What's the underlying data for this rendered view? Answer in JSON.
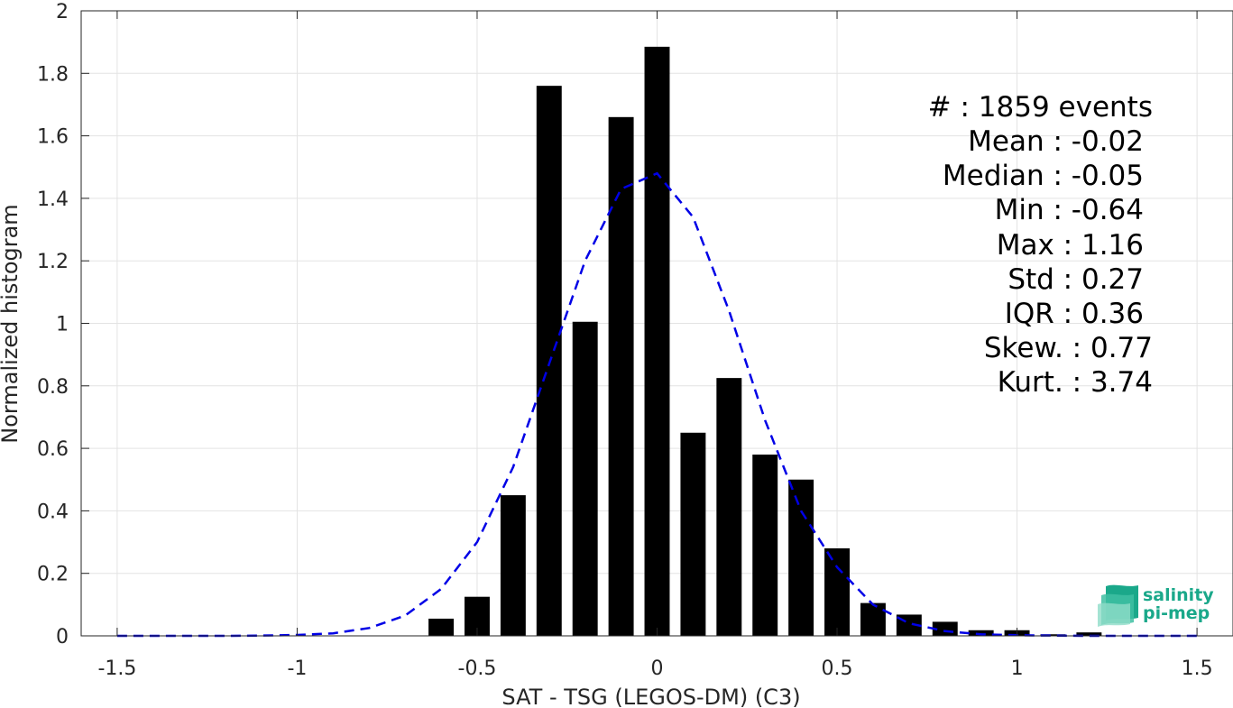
{
  "chart_data": {
    "type": "bar",
    "xlabel": "SAT - TSG (LEGOS-DM) (C3)",
    "ylabel": "Normalized histogram",
    "xlim": [
      -1.6,
      1.6
    ],
    "ylim": [
      0,
      2
    ],
    "xticks": [
      -1.5,
      -1,
      -0.5,
      0,
      0.5,
      1,
      1.5
    ],
    "xtick_labels": [
      "-1.5",
      "-1",
      "-0.5",
      "0",
      "0.5",
      "1",
      "1.5"
    ],
    "yticks": [
      0,
      0.2,
      0.4,
      0.6,
      0.8,
      1,
      1.2,
      1.4,
      1.6,
      1.8,
      2
    ],
    "ytick_labels": [
      "0",
      "0.2",
      "0.4",
      "0.6",
      "0.8",
      "1",
      "1.2",
      "1.4",
      "1.6",
      "1.8",
      "2"
    ],
    "grid": true,
    "bar_width": 0.07,
    "bars": {
      "x": [
        -0.6,
        -0.5,
        -0.4,
        -0.3,
        -0.2,
        -0.1,
        0.0,
        0.1,
        0.2,
        0.3,
        0.4,
        0.5,
        0.6,
        0.7,
        0.8,
        0.9,
        1.0,
        1.1,
        1.2
      ],
      "values": [
        0.055,
        0.125,
        0.45,
        1.76,
        1.005,
        1.66,
        1.885,
        0.65,
        0.825,
        0.58,
        0.5,
        0.28,
        0.105,
        0.068,
        0.045,
        0.018,
        0.018,
        0.005,
        0.011
      ],
      "color": "#000000"
    },
    "fit_curve": {
      "style": "dashed",
      "color": "#0000e6",
      "x": [
        -1.5,
        -1.4,
        -1.3,
        -1.2,
        -1.1,
        -1.0,
        -0.9,
        -0.8,
        -0.7,
        -0.6,
        -0.5,
        -0.4,
        -0.3,
        -0.2,
        -0.1,
        0.0,
        0.1,
        0.2,
        0.3,
        0.4,
        0.5,
        0.6,
        0.7,
        0.8,
        0.9,
        1.0,
        1.1,
        1.2,
        1.3,
        1.4,
        1.5
      ],
      "y": [
        0.0,
        0.0,
        0.0,
        0.0,
        0.001,
        0.003,
        0.008,
        0.025,
        0.065,
        0.15,
        0.3,
        0.54,
        0.87,
        1.2,
        1.43,
        1.48,
        1.34,
        1.04,
        0.69,
        0.4,
        0.22,
        0.1,
        0.04,
        0.015,
        0.005,
        0.002,
        0.001,
        0.0,
        0.0,
        0.0,
        0.0
      ]
    },
    "annotations": [
      "#  : 1859 events",
      "Mean : -0.02",
      "Median : -0.05",
      "Min : -0.64",
      "Max : 1.16",
      "Std : 0.27",
      "IQR : 0.36",
      "Skew. : 0.77",
      "Kurt. : 3.74"
    ]
  },
  "logo": {
    "line1": "salinity",
    "line2": "pi-mep",
    "icon": "salinity-wave-icon"
  }
}
